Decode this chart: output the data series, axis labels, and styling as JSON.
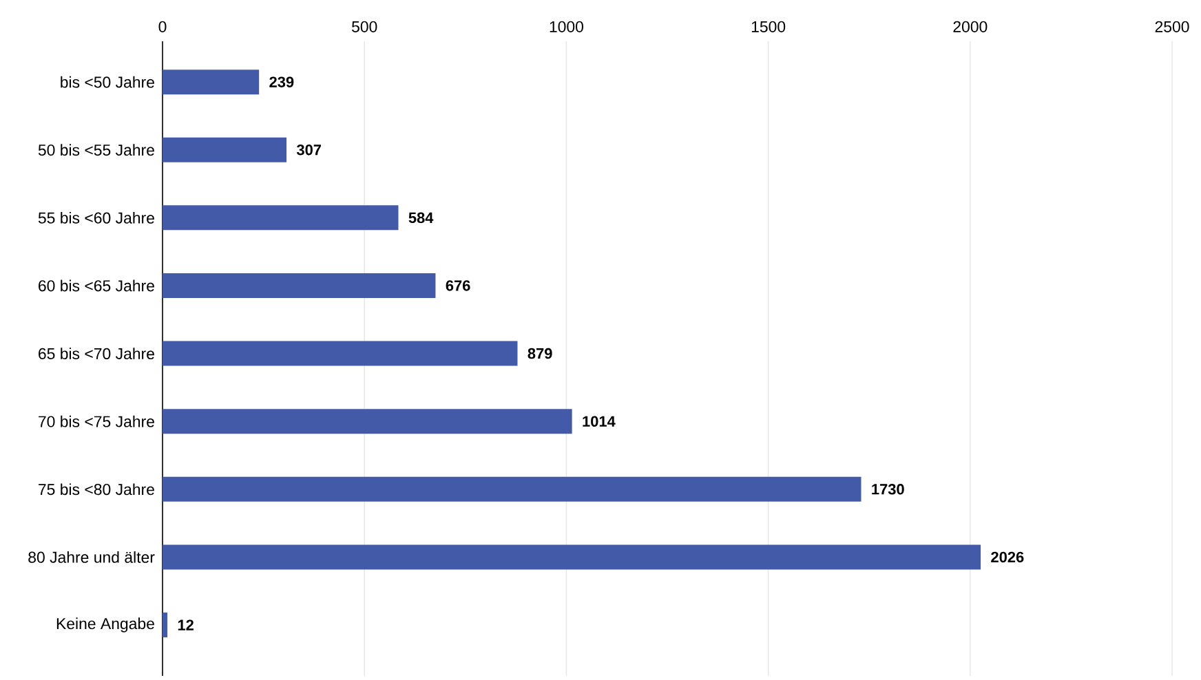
{
  "chart_data": {
    "type": "bar",
    "orientation": "horizontal",
    "categories": [
      "bis <50 Jahre",
      "50 bis <55 Jahre",
      "55 bis <60 Jahre",
      "60 bis <65 Jahre",
      "65 bis <70 Jahre",
      "70 bis <75 Jahre",
      "75 bis <80 Jahre",
      "80 Jahre und älter",
      "Keine Angabe"
    ],
    "values": [
      239,
      307,
      584,
      676,
      879,
      1014,
      1730,
      2026,
      12
    ],
    "color": "#435aa8",
    "xlim": [
      0,
      2500
    ],
    "xticks": [
      0,
      500,
      1000,
      1500,
      2000,
      2500
    ],
    "grid": "x",
    "data_labels": true
  }
}
